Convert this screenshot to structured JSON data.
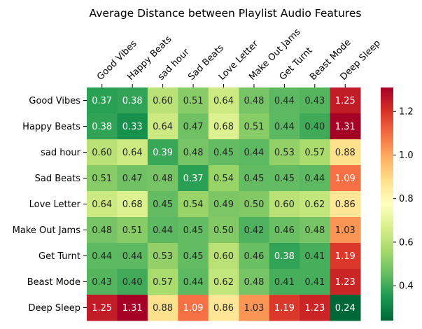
{
  "chart_data": {
    "type": "heatmap",
    "title": "Average Distance between Playlist Audio Features",
    "x_labels": [
      "Good Vibes",
      "Happy Beats",
      "sad hour",
      "Sad Beats",
      "Love Letter",
      "Make Out Jams",
      "Get Turnt",
      "Beast Mode",
      "Deep Sleep"
    ],
    "y_labels": [
      "Good Vibes",
      "Happy Beats",
      "sad hour",
      "Sad Beats",
      "Love Letter",
      "Make Out Jams",
      "Get Turnt",
      "Beast Mode",
      "Deep Sleep"
    ],
    "values": [
      [
        0.37,
        0.38,
        0.6,
        0.51,
        0.64,
        0.48,
        0.44,
        0.43,
        1.25
      ],
      [
        0.38,
        0.33,
        0.64,
        0.47,
        0.68,
        0.51,
        0.44,
        0.4,
        1.31
      ],
      [
        0.6,
        0.64,
        0.39,
        0.48,
        0.45,
        0.44,
        0.53,
        0.57,
        0.88
      ],
      [
        0.51,
        0.47,
        0.48,
        0.37,
        0.54,
        0.45,
        0.45,
        0.44,
        1.09
      ],
      [
        0.64,
        0.68,
        0.45,
        0.54,
        0.49,
        0.5,
        0.6,
        0.62,
        0.86
      ],
      [
        0.48,
        0.51,
        0.44,
        0.45,
        0.5,
        0.42,
        0.46,
        0.48,
        1.03
      ],
      [
        0.44,
        0.44,
        0.53,
        0.45,
        0.6,
        0.46,
        0.38,
        0.41,
        1.19
      ],
      [
        0.43,
        0.4,
        0.57,
        0.44,
        0.62,
        0.48,
        0.41,
        0.41,
        1.23
      ],
      [
        1.25,
        1.31,
        0.88,
        1.09,
        0.86,
        1.03,
        1.19,
        1.23,
        0.24
      ]
    ],
    "value_format": "0.00",
    "colorscale": "RdYlGn_r",
    "colorbar": {
      "range": [
        0.24,
        1.31
      ],
      "ticks": [
        0.4,
        0.6,
        0.8,
        1.0,
        1.2
      ],
      "tick_labels": [
        "0.4",
        "0.6",
        "0.8",
        "1.0",
        "1.2"
      ]
    },
    "x_label_position": "top",
    "x_label_rotation": "45",
    "grid": false
  }
}
